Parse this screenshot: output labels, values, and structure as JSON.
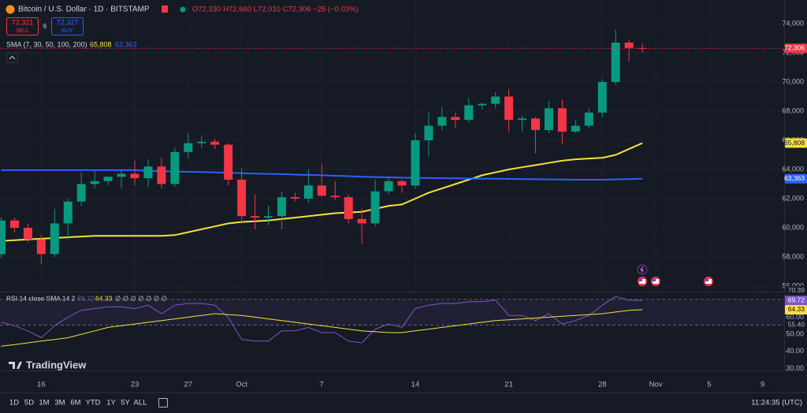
{
  "ui": {
    "symbol": "Bitcoin / U.S. Dollar · 1D · BITSTAMP",
    "ohlc_legend": "O72,330 H72,660 L72,010 C72,306 −25 (−0.03%)",
    "sell_price": "72,321",
    "sell": "SELL",
    "spread": "6",
    "buy_price": "72,327",
    "buy": "BUY",
    "logo": "TradingView",
    "ranges": [
      "1D",
      "5D",
      "1M",
      "3M",
      "6M",
      "YTD",
      "1Y",
      "5Y",
      "ALL"
    ],
    "clock": "11:24:35 (UTC)"
  },
  "chart_data": [
    {
      "type": "candlestick",
      "up_color": "#089981",
      "down_color": "#f23645",
      "grid": true,
      "categories": [
        null,
        null,
        null,
        "16",
        null,
        null,
        null,
        null,
        null,
        null,
        "23",
        null,
        null,
        null,
        "27",
        null,
        null,
        null,
        "Oct",
        null,
        null,
        null,
        null,
        null,
        "7",
        null,
        null,
        null,
        null,
        null,
        null,
        "14",
        null,
        null,
        null,
        null,
        null,
        null,
        "21",
        null,
        null,
        null,
        null,
        null,
        null,
        "28",
        null,
        null,
        null,
        "Nov",
        null,
        null,
        null,
        "5",
        null,
        null,
        null,
        "9"
      ],
      "open": [
        58200,
        60500,
        60000,
        59200,
        58200,
        60300,
        61800,
        63000,
        63200,
        63500,
        63700,
        63400,
        64200,
        63000,
        65200,
        65800,
        65900,
        65700,
        63300,
        60800,
        60700,
        60800,
        62100,
        62000,
        62900,
        62200,
        62100,
        60600,
        60300,
        62500,
        63200,
        62900,
        66000,
        67000,
        67600,
        67400,
        68400,
        68500,
        69000,
        67400,
        67500,
        66700,
        68200,
        66600,
        67000,
        67900,
        70000,
        72700,
        72330,
        null,
        null,
        null,
        null,
        null,
        null,
        null,
        null,
        null
      ],
      "high": [
        60700,
        60700,
        60300,
        59500,
        61300,
        62000,
        63800,
        64000,
        63500,
        64000,
        64600,
        64700,
        64800,
        65500,
        66500,
        66300,
        66100,
        65800,
        64100,
        62300,
        61500,
        62500,
        62400,
        64000,
        64400,
        63200,
        62300,
        61300,
        63300,
        63400,
        63300,
        66500,
        67900,
        68300,
        67900,
        68900,
        68600,
        69300,
        69500,
        67700,
        67600,
        68700,
        68800,
        67400,
        68200,
        70200,
        73600,
        72900,
        72660,
        null,
        null,
        null,
        null,
        null,
        null,
        null,
        null,
        null
      ],
      "low": [
        57900,
        59700,
        59000,
        57500,
        58000,
        59200,
        61500,
        62700,
        62900,
        62700,
        62900,
        62800,
        62700,
        62800,
        64800,
        65500,
        65400,
        62900,
        60300,
        59900,
        60200,
        59900,
        61800,
        61700,
        62100,
        61900,
        60300,
        58900,
        60100,
        62300,
        62400,
        62700,
        64900,
        66700,
        66800,
        67200,
        68100,
        68200,
        66600,
        66600,
        65100,
        66500,
        65700,
        66500,
        66800,
        67600,
        69800,
        71400,
        72010,
        null,
        null,
        null,
        null,
        null,
        null,
        null,
        null,
        null
      ],
      "close": [
        60500,
        60000,
        59200,
        58200,
        60300,
        61800,
        63000,
        63200,
        63500,
        63700,
        63400,
        64200,
        63000,
        65200,
        65800,
        65900,
        65700,
        63300,
        60800,
        60700,
        60800,
        62100,
        62000,
        62900,
        62200,
        62100,
        60600,
        60300,
        62500,
        63200,
        62900,
        66000,
        67000,
        67600,
        67400,
        68400,
        68500,
        69000,
        67400,
        67500,
        66700,
        68200,
        66600,
        67000,
        67900,
        70000,
        72700,
        72330,
        72306,
        null,
        null,
        null,
        null,
        null,
        null,
        null,
        null,
        null
      ],
      "last_price": {
        "value": 72306,
        "label": "72,306",
        "color": "#f23645"
      },
      "indicator": "SMA (7, 30, 50, 100, 200)",
      "series": [
        {
          "color": "#f5e13b",
          "last_label": "65,808",
          "values": [
            59100,
            59150,
            59200,
            59250,
            59300,
            59350,
            59400,
            59450,
            59450,
            59450,
            59450,
            59450,
            59450,
            59500,
            59700,
            59900,
            60100,
            60300,
            60400,
            60450,
            60500,
            60600,
            60700,
            60800,
            60900,
            61000,
            61050,
            61100,
            61300,
            61500,
            61600,
            62000,
            62400,
            62700,
            63000,
            63300,
            63600,
            63800,
            64000,
            64150,
            64300,
            64450,
            64600,
            64700,
            64750,
            64800,
            65000,
            65400,
            65808,
            null,
            null,
            null,
            null,
            null,
            null,
            null,
            null,
            null
          ]
        },
        {
          "color": "#2962ff",
          "last_label": "63,363",
          "values": [
            63950,
            63950,
            63950,
            63950,
            63950,
            63950,
            63950,
            63950,
            63950,
            63950,
            63950,
            63900,
            63880,
            63860,
            63840,
            63820,
            63800,
            63780,
            63750,
            63720,
            63700,
            63680,
            63650,
            63620,
            63600,
            63570,
            63540,
            63500,
            63480,
            63460,
            63440,
            63420,
            63410,
            63400,
            63390,
            63380,
            63370,
            63360,
            63350,
            63340,
            63330,
            63320,
            63310,
            63300,
            63300,
            63300,
            63320,
            63340,
            63363,
            null,
            null,
            null,
            null,
            null,
            null,
            null,
            null,
            null
          ]
        }
      ],
      "ylim": [
        55622,
        75622
      ],
      "yticks": [
        {
          "value": 56000,
          "label": "56,000"
        },
        {
          "value": 58000,
          "label": "58,000"
        },
        {
          "value": 60000,
          "label": "60,000"
        },
        {
          "value": 62000,
          "label": "62,000"
        },
        {
          "value": 64000,
          "label": "64,000"
        },
        {
          "value": 66000,
          "label": "66,000"
        },
        {
          "value": 68000,
          "label": "68,000"
        },
        {
          "value": 70000,
          "label": "70,000"
        },
        {
          "value": 72000,
          "label": "72,000"
        },
        {
          "value": 74000,
          "label": "74,000"
        }
      ]
    },
    {
      "type": "line",
      "title": "RSI 14 close SMA 14 2",
      "empty_inputs": "∅ ∅ ∅ ∅ ∅ ∅ ∅",
      "series": [
        {
          "color": "#7e57c2",
          "last_label": "69.72",
          "values": [
            57,
            55,
            52,
            48,
            55,
            60,
            64,
            65,
            66,
            66,
            65,
            67,
            62,
            67,
            68,
            68,
            67,
            60,
            47,
            46,
            46,
            52,
            52,
            54,
            51,
            51,
            46,
            45,
            53,
            56,
            54,
            65,
            67,
            68,
            68,
            69,
            69,
            70,
            61,
            61,
            58,
            62,
            56,
            58,
            61,
            67,
            72,
            70,
            69.72
          ]
        },
        {
          "color": "#f5e13b",
          "last_label": "64.33",
          "values": [
            43,
            44,
            45,
            46,
            47,
            48,
            50,
            52,
            54,
            55,
            56,
            57,
            58,
            59,
            60,
            61,
            62,
            61.5,
            61,
            60,
            59,
            58,
            57,
            56,
            55,
            54,
            53,
            52,
            51.5,
            51,
            51,
            52,
            53,
            54,
            55,
            56,
            57,
            58,
            58.5,
            59,
            59.5,
            60,
            60.5,
            61,
            61.5,
            62,
            63,
            64,
            64.33
          ]
        }
      ],
      "upper_band": {
        "value": 70.39,
        "label": "70.39"
      },
      "lower_band": {
        "value": 55.4,
        "label": "55.40"
      },
      "ylim": [
        28.9,
        74.9
      ],
      "yticks": [
        {
          "value": 30,
          "label": "30.00"
        },
        {
          "value": 40,
          "label": "40.00"
        },
        {
          "value": 50,
          "label": "50.00"
        },
        {
          "value": 60,
          "label": "60.00"
        }
      ]
    }
  ]
}
